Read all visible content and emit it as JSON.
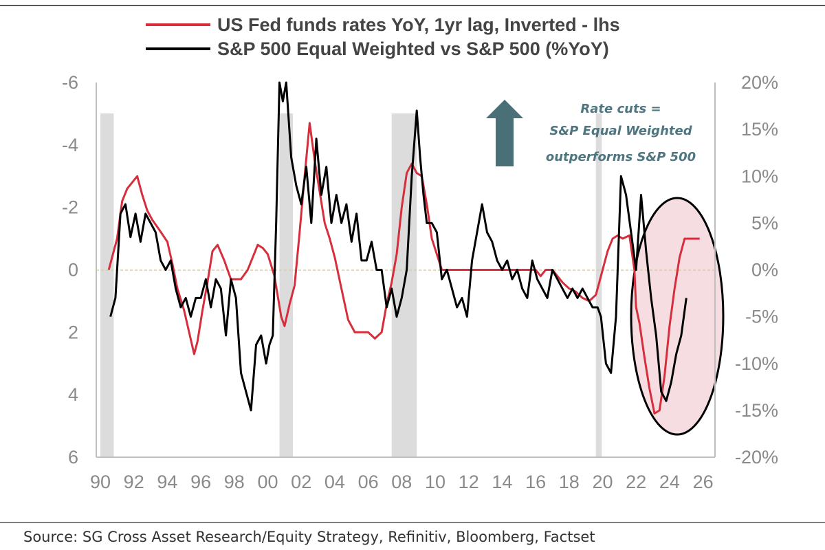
{
  "chart_data": {
    "type": "line",
    "legend": [
      {
        "label": "US Fed funds rates YoY, 1yr lag, Inverted - lhs",
        "color": "#d62e3c"
      },
      {
        "label": "S&P 500 Equal Weighted vs S&P 500 (%YoY)",
        "color": "#000000"
      }
    ],
    "annotation": [
      "Rate cuts =",
      "S&P Equal Weighted",
      "outperforms S&P 500"
    ],
    "source": "Source: SG Cross Asset Research/Equity Strategy, Refinitiv, Bloomberg, Factset",
    "x_ticks": [
      "90",
      "92",
      "94",
      "96",
      "98",
      "00",
      "02",
      "04",
      "06",
      "08",
      "10",
      "12",
      "14",
      "16",
      "18",
      "20",
      "22",
      "24",
      "26"
    ],
    "y_left": {
      "ticks": [
        "-6",
        "-4",
        "-2",
        "0",
        "2",
        "4",
        "6"
      ],
      "range": [
        -6,
        6
      ],
      "inverted": true
    },
    "y_right": {
      "ticks": [
        "20%",
        "15%",
        "10%",
        "5%",
        "0%",
        "-5%",
        "-10%",
        "-15%",
        "-20%"
      ],
      "range": [
        -20,
        20
      ]
    },
    "recessions": [
      [
        1990.0,
        1990.8
      ],
      [
        2000.7,
        2001.5
      ],
      [
        2007.4,
        2008.9
      ],
      [
        2019.6,
        2019.95
      ]
    ],
    "series": [
      {
        "name": "US Fed funds rates YoY, 1yr lag, Inverted - lhs",
        "axis": "left",
        "color": "#d62e3c",
        "x": [
          1990.5,
          1991.0,
          1991.3,
          1991.6,
          1991.9,
          1992.2,
          1992.5,
          1992.8,
          1993.1,
          1993.5,
          1994.0,
          1994.3,
          1994.6,
          1995.0,
          1995.3,
          1995.6,
          1995.8,
          1996.1,
          1996.4,
          1996.7,
          1997.0,
          1997.4,
          1997.8,
          1998.1,
          1998.4,
          1998.8,
          1999.1,
          1999.4,
          1999.7,
          2000.0,
          2000.4,
          2000.8,
          2001.0,
          2001.3,
          2001.6,
          2001.9,
          2002.2,
          2002.5,
          2002.8,
          2003.1,
          2003.4,
          2003.7,
          2004.0,
          2004.4,
          2004.8,
          2005.2,
          2005.6,
          2006.0,
          2006.4,
          2006.8,
          2007.1,
          2007.4,
          2007.7,
          2008.0,
          2008.3,
          2008.6,
          2008.9,
          2009.2,
          2009.5,
          2009.8,
          2010.1,
          2010.4,
          2010.7,
          2011.0,
          2012.0,
          2013.0,
          2014.0,
          2015.0,
          2016.0,
          2016.3,
          2016.6,
          2017.0,
          2017.3,
          2017.6,
          2018.0,
          2018.4,
          2018.8,
          2019.2,
          2019.6,
          2019.9,
          2020.3,
          2020.6,
          2020.9,
          2021.2,
          2021.6,
          2021.9,
          2022.0,
          2022.2,
          2022.5,
          2022.8,
          2023.1,
          2023.4,
          2023.7,
          2024.0,
          2024.3,
          2024.6,
          2024.9,
          2025.2,
          2025.5,
          2025.8
        ],
        "values": [
          0.0,
          -1.0,
          -2.2,
          -2.6,
          -2.8,
          -3.0,
          -2.4,
          -1.9,
          -1.6,
          -1.3,
          -0.9,
          -0.2,
          0.6,
          1.3,
          2.0,
          2.7,
          2.3,
          1.3,
          0.4,
          -0.6,
          -0.8,
          -0.3,
          0.3,
          0.3,
          0.3,
          0.0,
          -0.4,
          -0.8,
          -0.7,
          -0.5,
          0.2,
          1.5,
          1.8,
          1.1,
          0.5,
          -1.2,
          -3.0,
          -4.7,
          -3.5,
          -2.5,
          -1.5,
          -1.0,
          -0.4,
          0.6,
          1.6,
          2.0,
          2.0,
          2.0,
          2.2,
          2.0,
          1.1,
          0.4,
          -0.5,
          -2.0,
          -3.1,
          -3.4,
          -3.1,
          -3.0,
          -2.1,
          -1.0,
          -0.5,
          0.0,
          0.0,
          0.0,
          0.0,
          0.0,
          0.0,
          0.0,
          0.0,
          0.2,
          0.0,
          0.0,
          0.2,
          0.4,
          0.6,
          0.7,
          0.9,
          1.0,
          0.8,
          0.2,
          -0.6,
          -1.0,
          -1.1,
          -1.0,
          -1.1,
          0.0,
          1.2,
          1.7,
          2.8,
          3.8,
          4.6,
          4.5,
          3.4,
          1.8,
          0.6,
          -0.4,
          -1.0,
          -1.0,
          -1.0,
          -1.0
        ]
      },
      {
        "name": "S&P 500 Equal Weighted vs S&P 500 (%YoY)",
        "axis": "right",
        "color": "#000000",
        "x": [
          1990.6,
          1990.9,
          1991.2,
          1991.5,
          1991.8,
          1992.1,
          1992.4,
          1992.7,
          1993.0,
          1993.3,
          1993.6,
          1993.9,
          1994.2,
          1994.5,
          1994.8,
          1995.1,
          1995.4,
          1995.7,
          1996.0,
          1996.3,
          1996.6,
          1996.9,
          1997.2,
          1997.5,
          1997.8,
          1998.1,
          1998.4,
          1998.7,
          1999.0,
          1999.3,
          1999.6,
          1999.9,
          2000.1,
          2000.3,
          2000.5,
          2000.7,
          2000.9,
          2001.1,
          2001.4,
          2001.7,
          2002.0,
          2002.3,
          2002.6,
          2002.9,
          2003.2,
          2003.5,
          2003.8,
          2004.1,
          2004.4,
          2004.7,
          2005.0,
          2005.3,
          2005.6,
          2005.9,
          2006.2,
          2006.5,
          2006.8,
          2007.1,
          2007.4,
          2007.7,
          2008.0,
          2008.3,
          2008.6,
          2008.9,
          2009.1,
          2009.3,
          2009.5,
          2009.8,
          2010.1,
          2010.4,
          2010.7,
          2011.0,
          2011.3,
          2011.6,
          2011.9,
          2012.2,
          2012.5,
          2012.8,
          2013.1,
          2013.4,
          2013.7,
          2014.0,
          2014.3,
          2014.6,
          2014.9,
          2015.2,
          2015.5,
          2015.8,
          2016.1,
          2016.4,
          2016.7,
          2017.0,
          2017.3,
          2017.6,
          2017.9,
          2018.2,
          2018.5,
          2018.8,
          2019.1,
          2019.4,
          2019.7,
          2019.9,
          2020.2,
          2020.5,
          2020.8,
          2021.1,
          2021.4,
          2021.7,
          2022.0,
          2022.3,
          2022.6,
          2022.9,
          2023.2,
          2023.5,
          2023.8,
          2024.1,
          2024.4,
          2024.7,
          2025.0
        ],
        "values": [
          -5.0,
          -3.0,
          6.0,
          7.0,
          3.5,
          6.0,
          3.0,
          6.0,
          5.0,
          4.0,
          1.0,
          0.0,
          1.0,
          -2.0,
          -4.0,
          -3.0,
          -5.0,
          -3.0,
          -3.0,
          -1.0,
          -4.0,
          -1.0,
          -2.0,
          -7.0,
          -1.0,
          -3.0,
          -11.0,
          -13.0,
          -15.0,
          -8.0,
          -7.0,
          -10.0,
          -8.0,
          -7.0,
          5.0,
          20.0,
          18.0,
          21.0,
          12.0,
          9.0,
          7.0,
          11.0,
          5.0,
          14.0,
          8.0,
          11.0,
          5.0,
          8.0,
          5.0,
          7.0,
          3.0,
          6.0,
          1.0,
          1.0,
          3.0,
          0.0,
          0.0,
          -4.0,
          -2.0,
          -5.0,
          -3.0,
          0.0,
          10.0,
          17.0,
          12.0,
          8.0,
          5.0,
          5.0,
          4.0,
          -1.0,
          0.0,
          -2.0,
          -4.0,
          -3.0,
          -5.0,
          1.0,
          4.0,
          7.0,
          4.0,
          3.0,
          1.0,
          0.0,
          1.0,
          -1.0,
          0.0,
          -2.0,
          -3.0,
          1.0,
          -1.0,
          -2.0,
          -3.0,
          0.0,
          -1.0,
          -2.0,
          -3.0,
          -2.0,
          -3.0,
          -2.0,
          -3.0,
          -4.0,
          -4.0,
          -5.0,
          -10.0,
          -11.0,
          -5.0,
          10.0,
          8.0,
          4.0,
          0.0,
          8.0,
          2.0,
          -3.0,
          -7.0,
          -13.0,
          -14.0,
          -12.0,
          -9.0,
          -7.0,
          -3.0
        ]
      }
    ]
  }
}
